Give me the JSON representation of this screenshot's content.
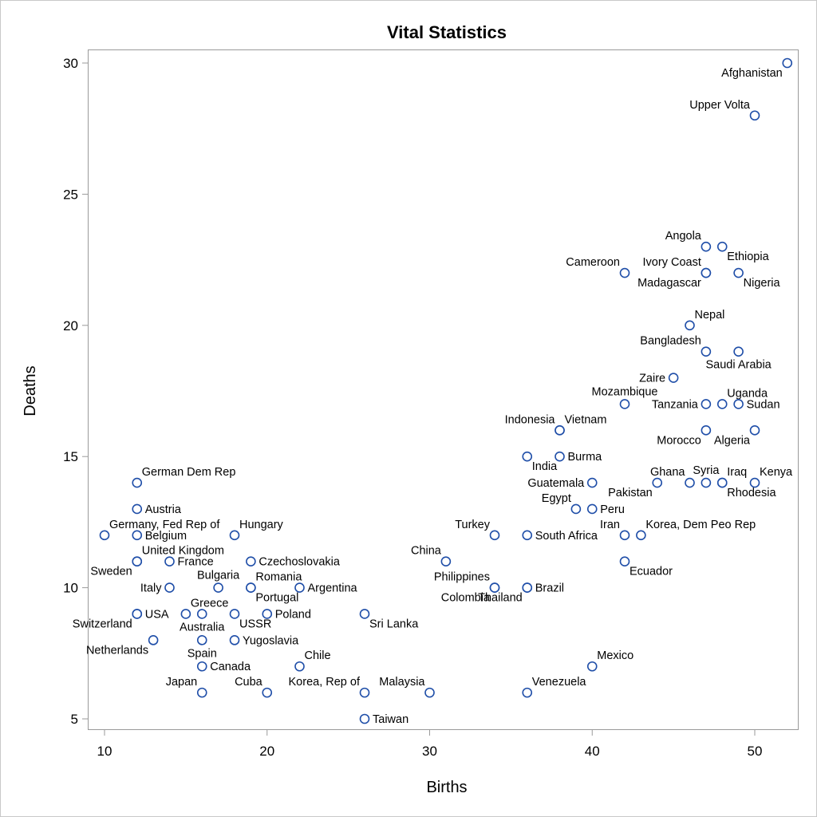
{
  "chart_data": {
    "type": "scatter",
    "title": "Vital Statistics",
    "xlabel": "Births",
    "ylabel": "Deaths",
    "xlim": [
      9,
      53
    ],
    "ylim": [
      4.5,
      31
    ],
    "xticks": [
      10,
      20,
      30,
      40,
      50
    ],
    "yticks": [
      5,
      10,
      15,
      20,
      25,
      30
    ],
    "grid": false,
    "marker_color": "#1f4ea8",
    "points": [
      {
        "label": "Afghanistan",
        "x": 52,
        "y": 30,
        "pos": "sw"
      },
      {
        "label": "Upper Volta",
        "x": 50,
        "y": 28,
        "pos": "nw"
      },
      {
        "label": "Angola",
        "x": 47,
        "y": 23,
        "pos": "nw"
      },
      {
        "label": "Ethiopia",
        "x": 48,
        "y": 23,
        "pos": "se"
      },
      {
        "label": "Ivory Coast",
        "x": 47,
        "y": 22,
        "pos": "nw"
      },
      {
        "label": "Madagascar",
        "x": 47,
        "y": 22,
        "pos": "sw"
      },
      {
        "label": "Cameroon",
        "x": 42,
        "y": 22,
        "pos": "nw"
      },
      {
        "label": "Nigeria",
        "x": 49,
        "y": 22,
        "pos": "se"
      },
      {
        "label": "Nepal",
        "x": 46,
        "y": 20,
        "pos": "ne"
      },
      {
        "label": "Bangladesh",
        "x": 47,
        "y": 19,
        "pos": "nw"
      },
      {
        "label": "Saudi Arabia",
        "x": 49,
        "y": 19,
        "pos": "s"
      },
      {
        "label": "Zaire",
        "x": 45,
        "y": 18,
        "pos": "w"
      },
      {
        "label": "Mozambique",
        "x": 42,
        "y": 17,
        "pos": "n"
      },
      {
        "label": "Tanzania",
        "x": 47,
        "y": 17,
        "pos": "w"
      },
      {
        "label": "Uganda",
        "x": 48,
        "y": 17,
        "pos": "ne"
      },
      {
        "label": "Sudan",
        "x": 49,
        "y": 17,
        "pos": "e"
      },
      {
        "label": "Indonesia",
        "x": 38,
        "y": 16,
        "pos": "nw"
      },
      {
        "label": "Vietnam",
        "x": 38,
        "y": 16,
        "pos": "ne"
      },
      {
        "label": "Morocco",
        "x": 47,
        "y": 16,
        "pos": "sw"
      },
      {
        "label": "Algeria",
        "x": 50,
        "y": 16,
        "pos": "sw"
      },
      {
        "label": "India",
        "x": 36,
        "y": 15,
        "pos": "se"
      },
      {
        "label": "Burma",
        "x": 38,
        "y": 15,
        "pos": "e"
      },
      {
        "label": "Guatemala",
        "x": 40,
        "y": 14,
        "pos": "w"
      },
      {
        "label": "Pakistan",
        "x": 44,
        "y": 14,
        "pos": "sw"
      },
      {
        "label": "Ghana",
        "x": 46,
        "y": 14,
        "pos": "nw"
      },
      {
        "label": "Syria",
        "x": 47,
        "y": 14,
        "pos": "n"
      },
      {
        "label": "Iraq",
        "x": 48,
        "y": 14,
        "pos": "ne"
      },
      {
        "label": "Rhodesia",
        "x": 48,
        "y": 14,
        "pos": "se"
      },
      {
        "label": "Kenya",
        "x": 50,
        "y": 14,
        "pos": "ne"
      },
      {
        "label": "Egypt",
        "x": 39,
        "y": 13,
        "pos": "nw"
      },
      {
        "label": "Peru",
        "x": 40,
        "y": 13,
        "pos": "e"
      },
      {
        "label": "Turkey",
        "x": 34,
        "y": 12,
        "pos": "nw"
      },
      {
        "label": "South Africa",
        "x": 36,
        "y": 12,
        "pos": "e"
      },
      {
        "label": "Iran",
        "x": 42,
        "y": 12,
        "pos": "nw"
      },
      {
        "label": "Korea, Dem Peo Rep",
        "x": 43,
        "y": 12,
        "pos": "ne"
      },
      {
        "label": "China",
        "x": 31,
        "y": 11,
        "pos": "nw"
      },
      {
        "label": "Ecuador",
        "x": 42,
        "y": 11,
        "pos": "se"
      },
      {
        "label": "Philippines",
        "x": 34,
        "y": 10,
        "pos": "nw"
      },
      {
        "label": "Colombia",
        "x": 34,
        "y": 10,
        "pos": "sw"
      },
      {
        "label": "Thailand",
        "x": 36,
        "y": 10,
        "pos": "sw"
      },
      {
        "label": "Brazil",
        "x": 36,
        "y": 10,
        "pos": "e"
      },
      {
        "label": "Mexico",
        "x": 40,
        "y": 7,
        "pos": "ne"
      },
      {
        "label": "Venezuela",
        "x": 36,
        "y": 6,
        "pos": "ne"
      },
      {
        "label": "Taiwan",
        "x": 26,
        "y": 5,
        "pos": "e"
      },
      {
        "label": "Malaysia",
        "x": 30,
        "y": 6,
        "pos": "nw"
      },
      {
        "label": "Korea, Rep of",
        "x": 26,
        "y": 6,
        "pos": "nw"
      },
      {
        "label": "Sri Lanka",
        "x": 26,
        "y": 9,
        "pos": "se"
      },
      {
        "label": "Cuba",
        "x": 20,
        "y": 6,
        "pos": "nw"
      },
      {
        "label": "Japan",
        "x": 16,
        "y": 6,
        "pos": "nw"
      },
      {
        "label": "Chile",
        "x": 22,
        "y": 7,
        "pos": "ne"
      },
      {
        "label": "Canada",
        "x": 16,
        "y": 7,
        "pos": "e"
      },
      {
        "label": "Netherlands",
        "x": 13,
        "y": 8,
        "pos": "sw"
      },
      {
        "label": "Spain",
        "x": 16,
        "y": 8,
        "pos": "s"
      },
      {
        "label": "Yugoslavia",
        "x": 18,
        "y": 8,
        "pos": "e"
      },
      {
        "label": "USA",
        "x": 12,
        "y": 9,
        "pos": "e"
      },
      {
        "label": "Switzerland",
        "x": 12,
        "y": 9,
        "pos": "sw"
      },
      {
        "label": "Greece",
        "x": 15,
        "y": 9,
        "pos": "ne"
      },
      {
        "label": "Australia",
        "x": 16,
        "y": 9,
        "pos": "s"
      },
      {
        "label": "USSR",
        "x": 18,
        "y": 9,
        "pos": "se"
      },
      {
        "label": "Poland",
        "x": 20,
        "y": 9,
        "pos": "e"
      },
      {
        "label": "Italy",
        "x": 14,
        "y": 10,
        "pos": "w"
      },
      {
        "label": "Bulgaria",
        "x": 17,
        "y": 10,
        "pos": "n"
      },
      {
        "label": "Romania",
        "x": 19,
        "y": 10,
        "pos": "ne"
      },
      {
        "label": "Portugal",
        "x": 19,
        "y": 10,
        "pos": "se"
      },
      {
        "label": "Argentina",
        "x": 22,
        "y": 10,
        "pos": "e"
      },
      {
        "label": "Sweden",
        "x": 12,
        "y": 11,
        "pos": "sw"
      },
      {
        "label": "United Kingdom",
        "x": 12,
        "y": 11,
        "pos": "ne"
      },
      {
        "label": "France",
        "x": 14,
        "y": 11,
        "pos": "e"
      },
      {
        "label": "Czechoslovakia",
        "x": 19,
        "y": 11,
        "pos": "e"
      },
      {
        "label": "Germany, Fed Rep of",
        "x": 10,
        "y": 12,
        "pos": "ne"
      },
      {
        "label": "Belgium",
        "x": 12,
        "y": 12,
        "pos": "e"
      },
      {
        "label": "Hungary",
        "x": 18,
        "y": 12,
        "pos": "ne"
      },
      {
        "label": "Austria",
        "x": 12,
        "y": 13,
        "pos": "e"
      },
      {
        "label": "German Dem Rep",
        "x": 12,
        "y": 14,
        "pos": "ne"
      }
    ]
  }
}
